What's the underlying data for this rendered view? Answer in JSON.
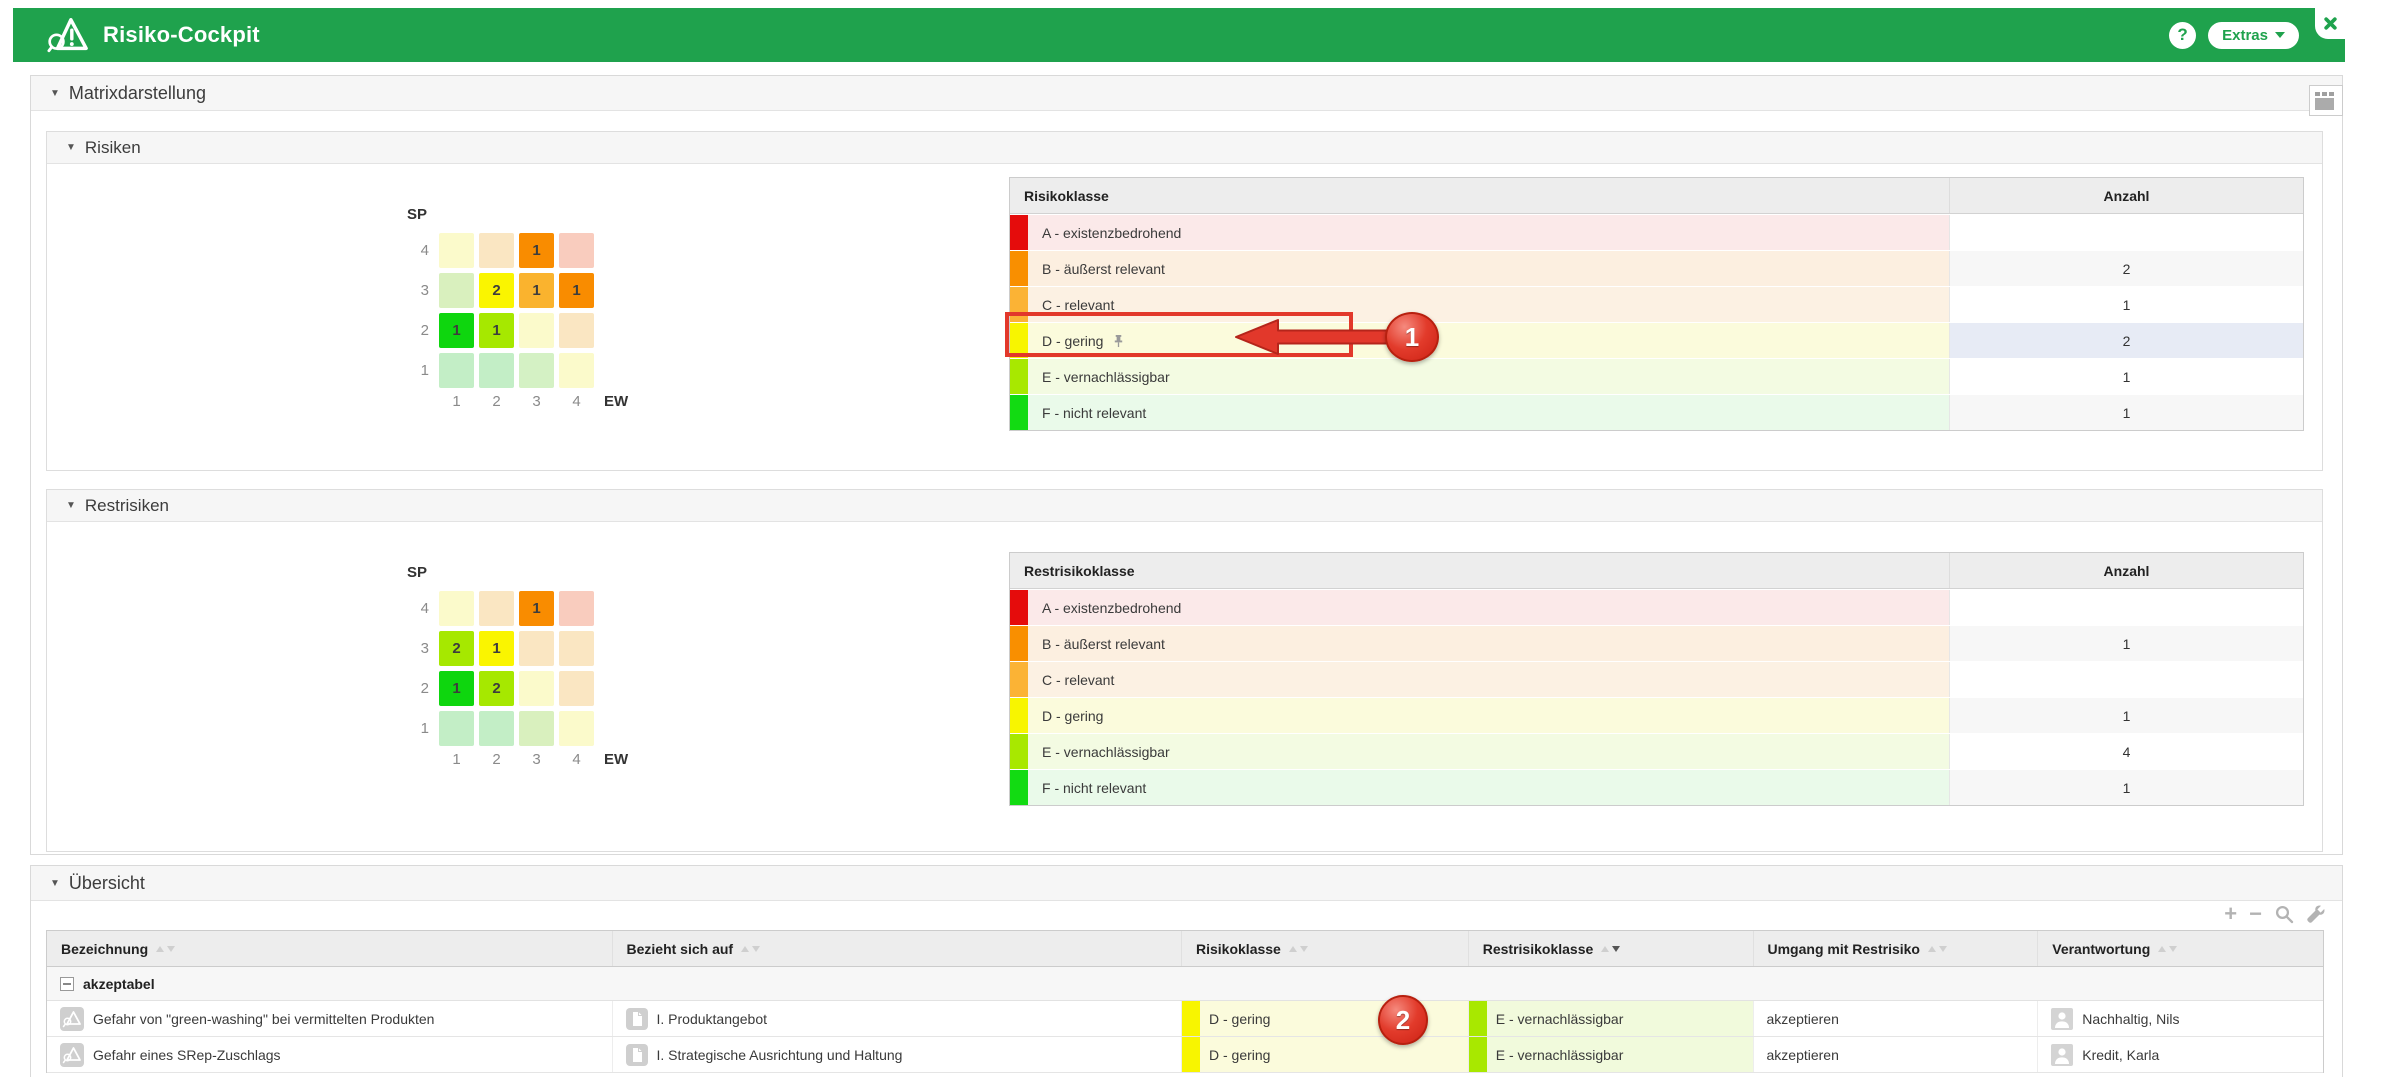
{
  "header": {
    "title": "Risiko-Cockpit",
    "help_label": "?",
    "extras_label": "Extras",
    "brand_color": "#1FA24D"
  },
  "sections": {
    "matrixdarstellung_title": "Matrixdarstellung",
    "risiken": {
      "title": "Risiken",
      "matrix": {
        "y_axis": "SP",
        "x_axis": "EW",
        "row_labels": [
          "4",
          "3",
          "2",
          "1"
        ],
        "col_labels": [
          "1",
          "2",
          "3",
          "4"
        ],
        "cells": [
          [
            {
              "c": "#FBFACB"
            },
            {
              "c": "#FAE6C2"
            },
            {
              "c": "#F98C00",
              "v": "1"
            },
            {
              "c": "#F9CCBE"
            }
          ],
          [
            {
              "c": "#D9F0BE"
            },
            {
              "c": "#FAF500",
              "v": "2"
            },
            {
              "c": "#FAB32E",
              "v": "1"
            },
            {
              "c": "#F98C00",
              "v": "1"
            }
          ],
          [
            {
              "c": "#0ED60E",
              "v": "1"
            },
            {
              "c": "#A6E800",
              "v": "1"
            },
            {
              "c": "#FBFACB"
            },
            {
              "c": "#FAE6C2"
            }
          ],
          [
            {
              "c": "#C3EEC6"
            },
            {
              "c": "#C3EEC6"
            },
            {
              "c": "#D4F1C4"
            },
            {
              "c": "#FBFACB"
            }
          ]
        ]
      },
      "table": {
        "headers": [
          "Risikoklasse",
          "Anzahl"
        ],
        "rows": [
          {
            "label": "A - existenzbedrohend",
            "count": "",
            "stripe": "#E50C0C",
            "tint": "#FBE9E9"
          },
          {
            "label": "B - äußerst relevant",
            "count": "2",
            "stripe": "#F98F00",
            "tint": "#FCEFE0"
          },
          {
            "label": "C - relevant",
            "count": "1",
            "stripe": "#FBB335",
            "tint": "#FCF1E3"
          },
          {
            "label": "D - gering",
            "count": "2",
            "stripe": "#F8F500",
            "tint": "#FBFBDC",
            "pinned": true,
            "selected": true
          },
          {
            "label": "E - vernachlässigbar",
            "count": "1",
            "stripe": "#A8E800",
            "tint": "#F3FBE2"
          },
          {
            "label": "F - nicht relevant",
            "count": "1",
            "stripe": "#12DB12",
            "tint": "#EAFAEA"
          }
        ]
      }
    },
    "restrisiken": {
      "title": "Restrisiken",
      "matrix": {
        "y_axis": "SP",
        "x_axis": "EW",
        "row_labels": [
          "4",
          "3",
          "2",
          "1"
        ],
        "col_labels": [
          "1",
          "2",
          "3",
          "4"
        ],
        "cells": [
          [
            {
              "c": "#FBFACB"
            },
            {
              "c": "#FAE6C2"
            },
            {
              "c": "#F98C00",
              "v": "1"
            },
            {
              "c": "#F9CCBE"
            }
          ],
          [
            {
              "c": "#A6E800",
              "v": "2"
            },
            {
              "c": "#FAF500",
              "v": "1"
            },
            {
              "c": "#FAE6C2"
            },
            {
              "c": "#FAE6C2"
            }
          ],
          [
            {
              "c": "#0ED60E",
              "v": "1"
            },
            {
              "c": "#A6E800",
              "v": "2"
            },
            {
              "c": "#FBFACB"
            },
            {
              "c": "#FAE6C2"
            }
          ],
          [
            {
              "c": "#C3EEC6"
            },
            {
              "c": "#C3EEC6"
            },
            {
              "c": "#D9F0BE"
            },
            {
              "c": "#FBFACB"
            }
          ]
        ]
      },
      "table": {
        "headers": [
          "Restrisikoklasse",
          "Anzahl"
        ],
        "rows": [
          {
            "label": "A - existenzbedrohend",
            "count": "",
            "stripe": "#E50C0C",
            "tint": "#FBE9E9"
          },
          {
            "label": "B - äußerst relevant",
            "count": "1",
            "stripe": "#F98F00",
            "tint": "#FCEFE0"
          },
          {
            "label": "C - relevant",
            "count": "",
            "stripe": "#FBB335",
            "tint": "#FCF1E3"
          },
          {
            "label": "D - gering",
            "count": "1",
            "stripe": "#F8F500",
            "tint": "#FBFBDC"
          },
          {
            "label": "E - vernachlässigbar",
            "count": "4",
            "stripe": "#A8E800",
            "tint": "#F3FBE2"
          },
          {
            "label": "F - nicht relevant",
            "count": "1",
            "stripe": "#12DB12",
            "tint": "#EAFAEA"
          }
        ]
      }
    },
    "uebersicht": {
      "title": "Übersicht",
      "toolbar_icons": [
        "plus",
        "minus",
        "search",
        "wrench"
      ],
      "columns": [
        {
          "label": "Bezeichnung",
          "sort": "none"
        },
        {
          "label": "Bezieht sich auf",
          "sort": "none"
        },
        {
          "label": "Risikoklasse",
          "sort": "none"
        },
        {
          "label": "Restrisikoklasse",
          "sort": "desc"
        },
        {
          "label": "Umgang mit Restrisiko",
          "sort": "none"
        },
        {
          "label": "Verantwortung",
          "sort": "none"
        }
      ],
      "group_label": "akzeptabel",
      "rows": [
        {
          "bezeichnung": "Gefahr von \"green-washing\" bei vermittelten Produkten",
          "bezieht_sich_auf": "I. Produktangebot",
          "risikoklasse": {
            "label": "D - gering",
            "stripe": "#F8F500",
            "tint": "#FBFBDC"
          },
          "restrisikoklasse": {
            "label": "E - vernachlässigbar",
            "stripe": "#A8E800",
            "tint": "#F1FADC"
          },
          "umgang": "akzeptieren",
          "verantwortung": "Nachhaltig, Nils"
        },
        {
          "bezeichnung": "Gefahr eines SRep-Zuschlags",
          "bezieht_sich_auf": "I. Strategische Ausrichtung und Haltung",
          "risikoklasse": {
            "label": "D - gering",
            "stripe": "#F8F500",
            "tint": "#FBFBDC"
          },
          "restrisikoklasse": {
            "label": "E - vernachlässigbar",
            "stripe": "#A8E800",
            "tint": "#F1FADC"
          },
          "umgang": "akzeptieren",
          "verantwortung": "Kredit, Karla"
        }
      ]
    }
  },
  "annotations": {
    "step1": "1",
    "step2": "2"
  }
}
